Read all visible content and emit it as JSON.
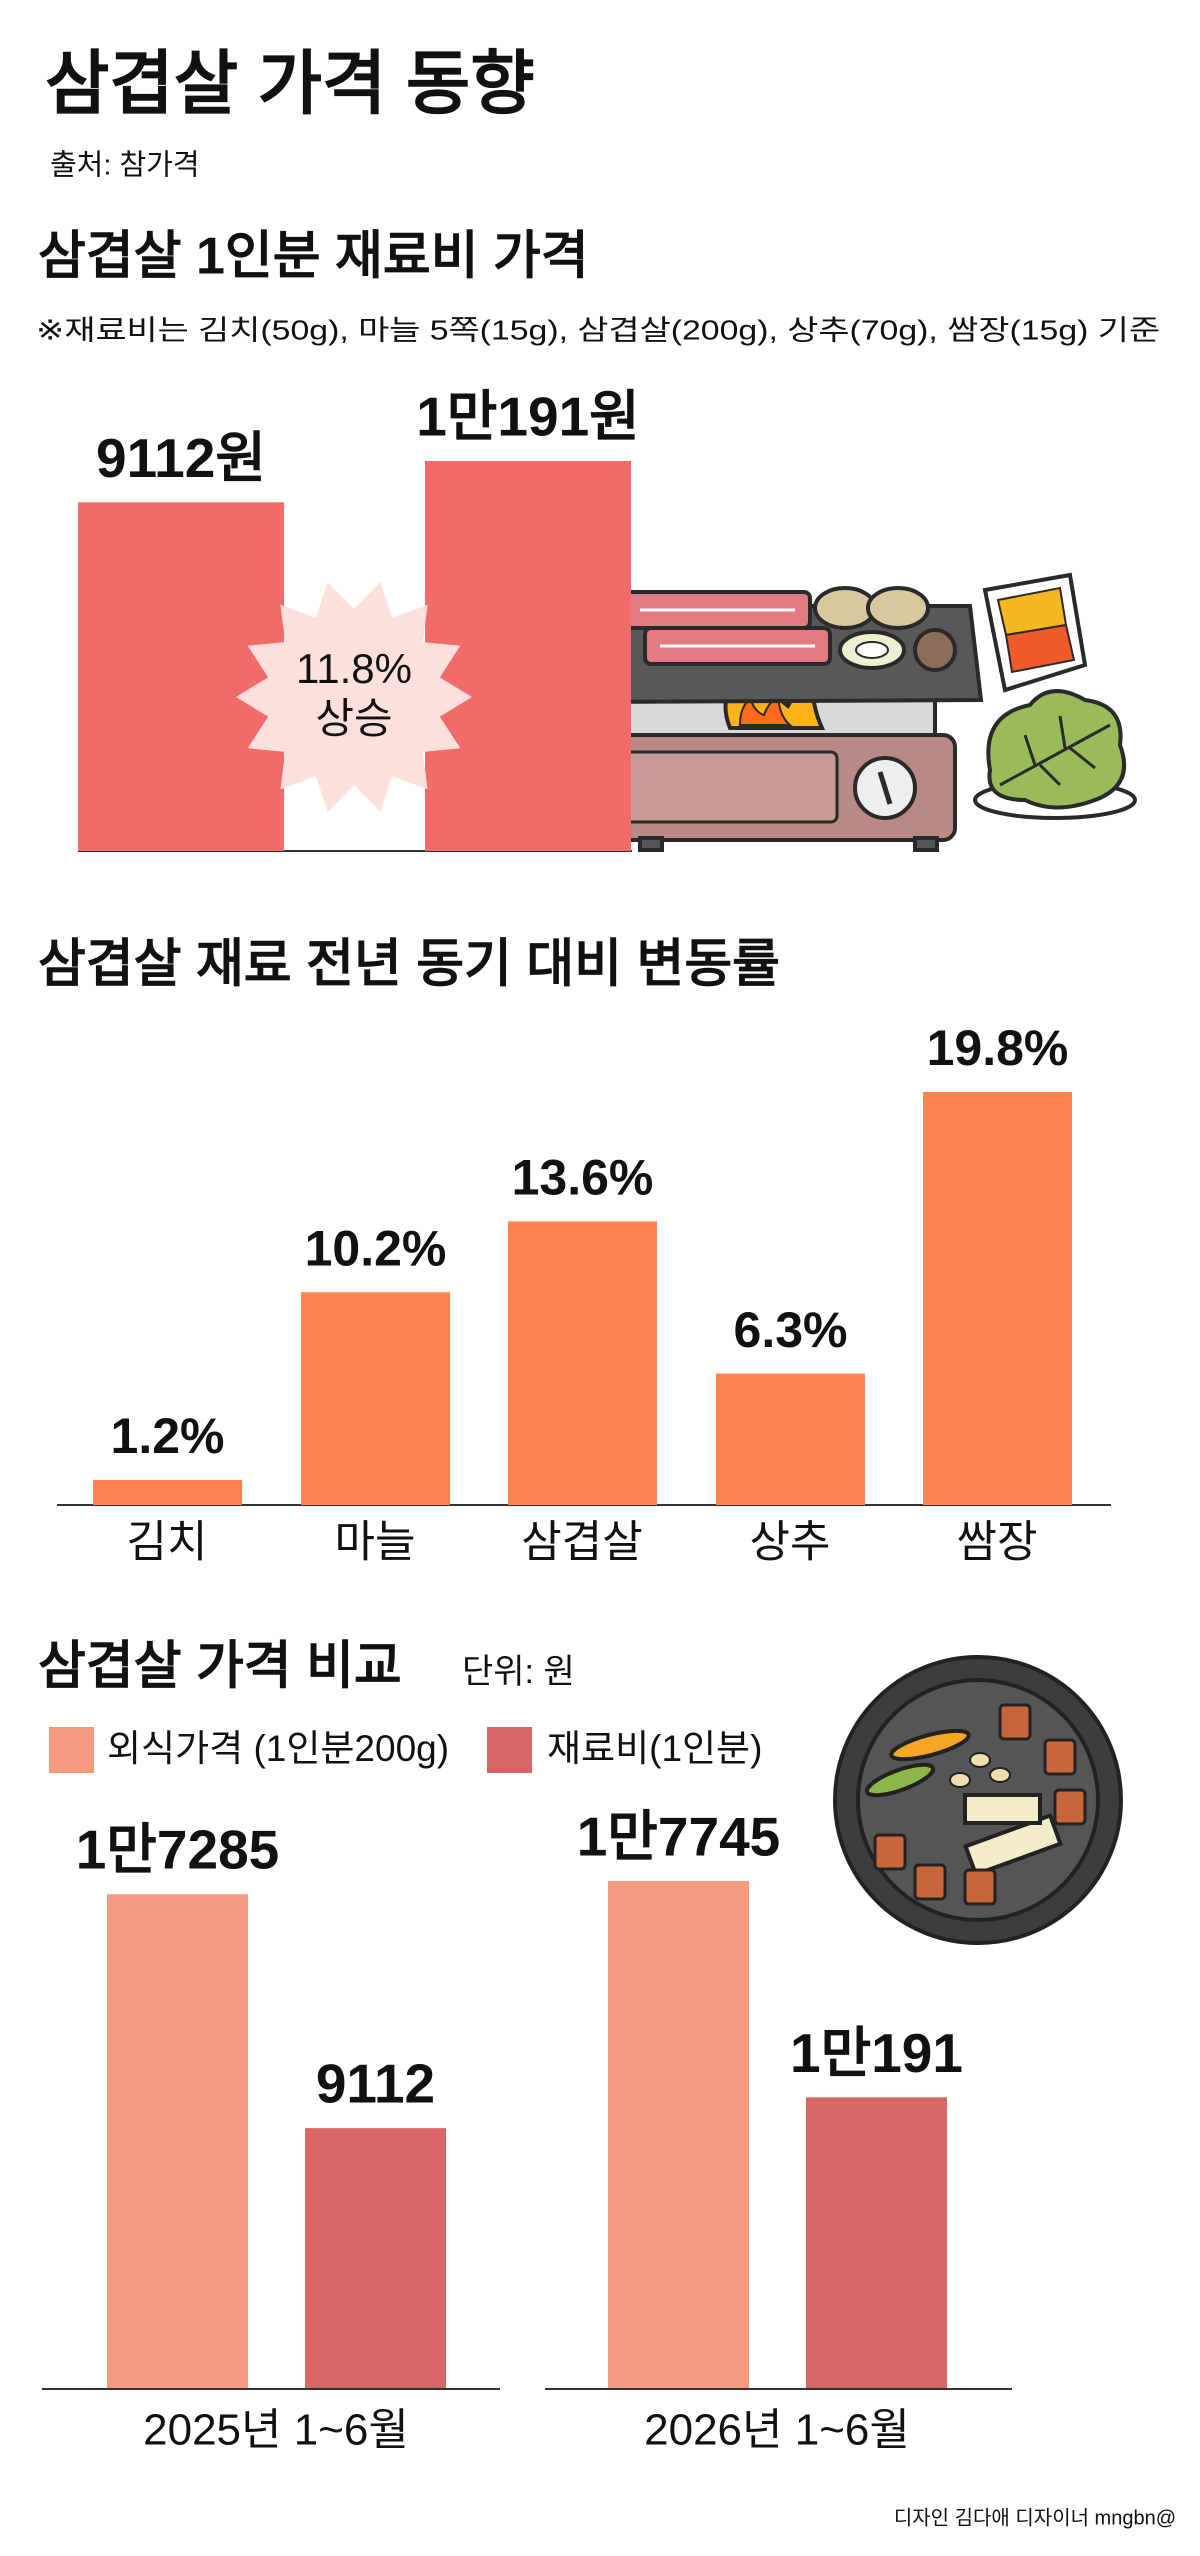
{
  "header": {
    "title": "삼겹살 가격 동향",
    "source": "출처: 참가격"
  },
  "chart_data": [
    {
      "type": "bar",
      "title": "삼겹살 1인분 재료비 가격",
      "subtitle": "※재료비는 김치(50g), 마늘 5쪽(15g), 삼겹살(200g), 상추(70g), 쌈장(15g) 기준",
      "values": [
        9112,
        10191
      ],
      "value_labels": [
        "9112원",
        "1만191원"
      ],
      "color": "#f26b6b",
      "annotation": [
        "11.8%",
        "상승"
      ]
    },
    {
      "type": "bar",
      "title": "삼겹살 재료 전년 동기 대비 변동률",
      "categories": [
        "김치",
        "마늘",
        "삼겹살",
        "상추",
        "쌈장"
      ],
      "values": [
        1.2,
        10.2,
        13.6,
        6.3,
        19.8
      ],
      "value_labels": [
        "1.2%",
        "10.2%",
        "13.6%",
        "6.3%",
        "19.8%"
      ],
      "color": "#ff8450"
    },
    {
      "type": "bar",
      "title": "삼겹살 가격 비교",
      "unit": "단위: 원",
      "categories": [
        "2025년 1~6월",
        "2026년 1~6월"
      ],
      "series": [
        {
          "name": "외식가격 (1인분200g)",
          "color": "#f49b7f",
          "values": [
            17285,
            17745
          ],
          "value_labels": [
            "1만7285",
            "1만7745"
          ]
        },
        {
          "name": "재료비(1인분)",
          "color": "#d96666",
          "values": [
            9112,
            10191
          ],
          "value_labels": [
            "9112",
            "1만191"
          ]
        }
      ]
    }
  ],
  "footer": {
    "credit": "디자인 김다애 디자이너 mngbn@"
  }
}
